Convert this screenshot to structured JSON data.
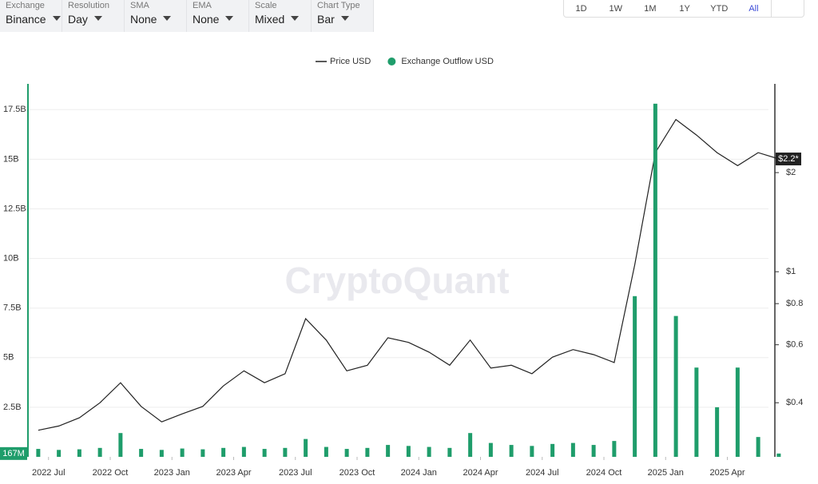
{
  "toolbar": {
    "selects": [
      {
        "label": "Exchange",
        "value": "Binance"
      },
      {
        "label": "Resolution",
        "value": "Day"
      },
      {
        "label": "SMA",
        "value": "None"
      },
      {
        "label": "EMA",
        "value": "None"
      },
      {
        "label": "Scale",
        "value": "Mixed"
      },
      {
        "label": "Chart Type",
        "value": "Bar"
      }
    ],
    "ranges": [
      "1D",
      "1W",
      "1M",
      "1Y",
      "YTD",
      "All"
    ],
    "active_range": "All"
  },
  "chart_data": {
    "type": "combo",
    "watermark": "CryptoQuant",
    "legend": "top",
    "grid": true,
    "x": [
      "2022-06",
      "2022-07",
      "2022-08",
      "2022-09",
      "2022-10",
      "2022-11",
      "2022-12",
      "2023-01",
      "2023-02",
      "2023-03",
      "2023-04",
      "2023-05",
      "2023-06",
      "2023-07",
      "2023-08",
      "2023-09",
      "2023-10",
      "2023-11",
      "2023-12",
      "2024-01",
      "2024-02",
      "2024-03",
      "2024-04",
      "2024-05",
      "2024-06",
      "2024-07",
      "2024-08",
      "2024-09",
      "2024-10",
      "2024-11",
      "2024-12",
      "2025-01",
      "2025-02",
      "2025-03",
      "2025-04",
      "2025-05",
      "2025-06"
    ],
    "xlim": [
      "2022-06",
      "2025-06"
    ],
    "xticks": [
      {
        "value": "2022-07",
        "label": "2022 Jul"
      },
      {
        "value": "2022-10",
        "label": "2022 Oct"
      },
      {
        "value": "2023-01",
        "label": "2023 Jan"
      },
      {
        "value": "2023-04",
        "label": "2023 Apr"
      },
      {
        "value": "2023-07",
        "label": "2023 Jul"
      },
      {
        "value": "2023-10",
        "label": "2023 Oct"
      },
      {
        "value": "2024-01",
        "label": "2024 Jan"
      },
      {
        "value": "2024-04",
        "label": "2024 Apr"
      },
      {
        "value": "2024-07",
        "label": "2024 Jul"
      },
      {
        "value": "2024-10",
        "label": "2024 Oct"
      },
      {
        "value": "2025-01",
        "label": "2025 Jan"
      },
      {
        "value": "2025-04",
        "label": "2025 Apr"
      }
    ],
    "ylim": [
      0,
      18800000000
    ],
    "yticks": [
      {
        "value": 2500000000,
        "label": "2.5B"
      },
      {
        "value": 5000000000,
        "label": "5B"
      },
      {
        "value": 7500000000,
        "label": "7.5B"
      },
      {
        "value": 10000000000,
        "label": "10B"
      },
      {
        "value": 12500000000,
        "label": "12.5B"
      },
      {
        "value": 15000000000,
        "label": "15B"
      },
      {
        "value": 17500000000,
        "label": "17.5B"
      }
    ],
    "y2lim": [
      0.274,
      3.72
    ],
    "y2scale": "log",
    "y2ticks": [
      {
        "value": 0.4,
        "label": "$0.4"
      },
      {
        "value": 0.6,
        "label": "$0.6"
      },
      {
        "value": 0.8,
        "label": "$0.8"
      },
      {
        "value": 1,
        "label": "$1"
      },
      {
        "value": 2,
        "label": "$2"
      }
    ],
    "series": [
      {
        "name": "Price USD",
        "type": "line",
        "axis": "y2",
        "color": "#222222",
        "values": [
          0.33,
          0.34,
          0.36,
          0.4,
          0.46,
          0.39,
          0.35,
          0.37,
          0.39,
          0.45,
          0.5,
          0.46,
          0.49,
          0.72,
          0.62,
          0.5,
          0.52,
          0.63,
          0.61,
          0.57,
          0.52,
          0.62,
          0.51,
          0.52,
          0.49,
          0.55,
          0.58,
          0.56,
          0.53,
          1.05,
          2.3,
          2.9,
          2.6,
          2.3,
          2.1,
          2.3,
          2.2
        ],
        "value_labels": [
          null,
          null,
          null,
          null,
          null,
          null,
          null,
          null,
          null,
          null,
          null,
          null,
          null,
          null,
          null,
          null,
          null,
          null,
          null,
          null,
          null,
          null,
          null,
          null,
          null,
          null,
          null,
          null,
          null,
          null,
          null,
          null,
          null,
          null,
          null,
          null,
          "$2.2*"
        ]
      },
      {
        "name": "Exchange Outflow USD",
        "type": "bar",
        "color": "#1f9d6b",
        "values": [
          400000000,
          350000000,
          380000000,
          450000000,
          1200000000,
          400000000,
          350000000,
          420000000,
          380000000,
          450000000,
          500000000,
          400000000,
          450000000,
          900000000,
          500000000,
          400000000,
          450000000,
          600000000,
          550000000,
          500000000,
          450000000,
          1200000000,
          700000000,
          600000000,
          550000000,
          650000000,
          700000000,
          600000000,
          800000000,
          8100000000,
          17800000000,
          7100000000,
          4500000000,
          2500000000,
          4500000000,
          1000000000,
          167000000
        ],
        "value_labels": [
          null,
          null,
          null,
          null,
          null,
          null,
          null,
          null,
          null,
          null,
          null,
          null,
          null,
          null,
          null,
          null,
          null,
          null,
          null,
          null,
          null,
          null,
          null,
          null,
          null,
          null,
          null,
          null,
          null,
          null,
          null,
          null,
          null,
          null,
          null,
          null,
          "167M"
        ]
      }
    ]
  }
}
